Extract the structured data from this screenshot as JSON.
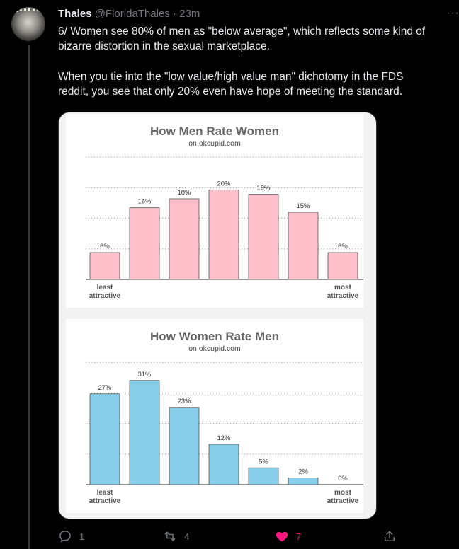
{
  "tweet": {
    "display_name": "Thales",
    "handle": "@FloridaThales",
    "separator": " · ",
    "time": "23m",
    "more_label": "···",
    "lines_p1": [
      "6/ Women see 80% of men as \"below average\", which reflects some kind of",
      "bizarre distortion in the sexual marketplace."
    ],
    "lines_p2": [
      "When you tie into the \"low value/high value man\" dichotomy in the FDS",
      "reddit, you see that only 20% even have hope of meeting the standard."
    ]
  },
  "actions": {
    "reply_count": "1",
    "retweet_count": "4",
    "like_count": "7"
  },
  "colors": {
    "like": "#f91880",
    "bar_women": "#ffc0cb",
    "bar_men": "#87ceeb"
  },
  "chart_data": [
    {
      "type": "bar",
      "title": "How Men Rate Women",
      "subtitle": "on okcupid.com",
      "categories": [
        "least attractive",
        "",
        "",
        "",
        "",
        "",
        "most attractive"
      ],
      "values": [
        6,
        16,
        18,
        20,
        19,
        15,
        6
      ],
      "value_labels": [
        "6%",
        "16%",
        "18%",
        "20%",
        "19%",
        "15%",
        "6%"
      ],
      "left_label": [
        "least",
        "attractive"
      ],
      "right_label": [
        "most",
        "attractive"
      ],
      "ylim": [
        0,
        30
      ],
      "grid": true,
      "color": "#ffc0cb"
    },
    {
      "type": "bar",
      "title": "How Women Rate Men",
      "subtitle": "on okcupid.com",
      "categories": [
        "least attractive",
        "",
        "",
        "",
        "",
        "",
        "most attractive"
      ],
      "values": [
        27,
        31,
        23,
        12,
        5,
        2,
        0
      ],
      "value_labels": [
        "27%",
        "31%",
        "23%",
        "12%",
        "5%",
        "2%",
        "0%"
      ],
      "left_label": [
        "least",
        "attractive"
      ],
      "right_label": [
        "most",
        "attractive"
      ],
      "ylim": [
        0,
        40
      ],
      "grid": true,
      "color": "#87ceeb"
    }
  ]
}
